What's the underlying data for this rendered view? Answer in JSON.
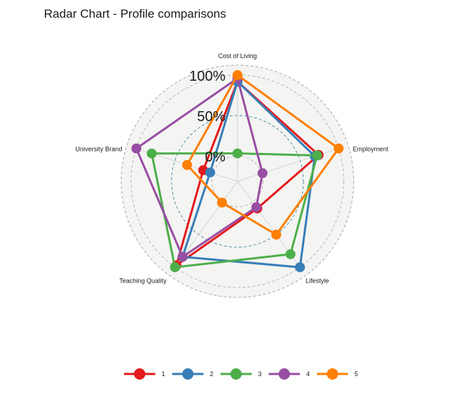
{
  "chart_data": {
    "type": "radar",
    "title": "Radar Chart - Profile comparisons",
    "axes": [
      "Cost of Living",
      "Employment",
      "Lifestyle",
      "Teaching Quality",
      "University Brand"
    ],
    "grid_levels": [
      0,
      0.5,
      1
    ],
    "grid_labels": [
      "0%",
      "50%",
      "100%"
    ],
    "legend_position": "bottom",
    "series": [
      {
        "name": "1",
        "color": "#e41a1c",
        "values": [
          0.92,
          0.74,
          0.1,
          0.97,
          0.13
        ]
      },
      {
        "name": "2",
        "color": "#377eb8",
        "values": [
          0.92,
          0.69,
          1.0,
          0.84,
          0.04
        ]
      },
      {
        "name": "3",
        "color": "#4daf4a",
        "values": [
          0.03,
          0.72,
          0.8,
          1.0,
          0.8
        ]
      },
      {
        "name": "4",
        "color": "#984ea3",
        "values": [
          0.96,
          0.01,
          0.08,
          0.84,
          1.0
        ]
      },
      {
        "name": "5",
        "color": "#ff7f00",
        "values": [
          1.0,
          1.0,
          0.5,
          0.01,
          0.34
        ]
      }
    ]
  }
}
